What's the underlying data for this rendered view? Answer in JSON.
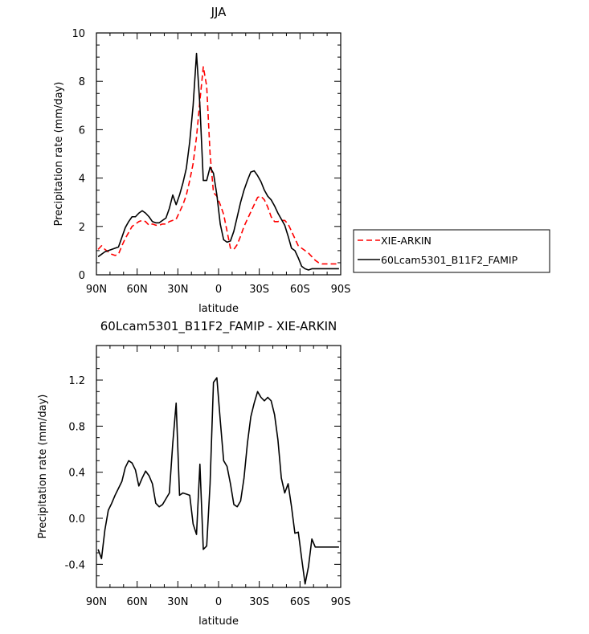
{
  "chart_data": [
    {
      "type": "line",
      "title": "JJA",
      "xlabel": "latitude",
      "ylabel": "Precipitation rate (mm/day)",
      "xlim": [
        90,
        -90
      ],
      "ylim": [
        0,
        10
      ],
      "x_ticks": [
        90,
        60,
        30,
        0,
        -30,
        -60,
        -90
      ],
      "x_tick_labels": [
        "90N",
        "60N",
        "30N",
        "0",
        "30S",
        "60S",
        "90S"
      ],
      "y_ticks": [
        0,
        2,
        4,
        6,
        8,
        10
      ],
      "y_tick_labels": [
        "0",
        "2",
        "4",
        "6",
        "8",
        "10"
      ],
      "legend_position": "right, beside plot",
      "series": [
        {
          "name": "XIE-ARKIN",
          "color": "#ff0000",
          "style": "dashed",
          "x": [
            88.75,
            86.25,
            83.75,
            81.25,
            78.75,
            76.25,
            73.75,
            71.25,
            68.75,
            66.25,
            63.75,
            61.25,
            58.75,
            56.25,
            53.75,
            51.25,
            48.75,
            46.25,
            43.75,
            41.25,
            38.75,
            36.25,
            33.75,
            31.25,
            28.75,
            26.25,
            23.75,
            21.25,
            18.75,
            16.25,
            13.75,
            11.25,
            8.75,
            6.25,
            3.75,
            1.25,
            -1.25,
            -3.75,
            -6.25,
            -8.75,
            -11.25,
            -13.75,
            -16.25,
            -18.75,
            -21.25,
            -23.75,
            -26.25,
            -28.75,
            -31.25,
            -33.75,
            -36.25,
            -38.75,
            -41.25,
            -43.75,
            -46.25,
            -48.75,
            -51.25,
            -53.75,
            -56.25,
            -58.75,
            -61.25,
            -63.75,
            -66.25,
            -68.75,
            -71.25,
            -73.75,
            -76.25,
            -78.75,
            -81.25,
            -83.75,
            -86.25,
            -88.75
          ],
          "y": [
            1.05,
            1.2,
            1.05,
            0.95,
            0.85,
            0.8,
            0.85,
            1.2,
            1.5,
            1.75,
            2.0,
            2.1,
            2.2,
            2.25,
            2.2,
            2.05,
            2.1,
            2.05,
            2.05,
            2.1,
            2.1,
            2.2,
            2.25,
            2.3,
            2.6,
            2.9,
            3.3,
            3.9,
            4.6,
            5.7,
            7.2,
            8.6,
            7.8,
            5.0,
            3.4,
            3.25,
            2.9,
            2.5,
            1.8,
            1.1,
            1.05,
            1.25,
            1.6,
            2.0,
            2.3,
            2.6,
            2.9,
            3.2,
            3.25,
            3.1,
            2.8,
            2.4,
            2.2,
            2.2,
            2.25,
            2.25,
            2.1,
            1.8,
            1.5,
            1.2,
            1.1,
            1.0,
            0.9,
            0.75,
            0.6,
            0.5,
            0.45,
            0.45,
            0.45,
            0.45,
            0.45,
            0.45
          ]
        },
        {
          "name": "60Lcam5301_B11F2_FAMIP",
          "color": "#000000",
          "style": "solid",
          "x": [
            88.75,
            86.25,
            83.75,
            81.25,
            78.75,
            76.25,
            73.75,
            71.25,
            68.75,
            66.25,
            63.75,
            61.25,
            58.75,
            56.25,
            53.75,
            51.25,
            48.75,
            46.25,
            43.75,
            41.25,
            38.75,
            36.25,
            33.75,
            31.25,
            28.75,
            26.25,
            23.75,
            21.25,
            18.75,
            16.25,
            13.75,
            11.25,
            8.75,
            6.25,
            3.75,
            1.25,
            -1.25,
            -3.75,
            -6.25,
            -8.75,
            -11.25,
            -13.75,
            -16.25,
            -18.75,
            -21.25,
            -23.75,
            -26.25,
            -28.75,
            -31.25,
            -33.75,
            -36.25,
            -38.75,
            -41.25,
            -43.75,
            -46.25,
            -48.75,
            -51.25,
            -53.75,
            -56.25,
            -58.75,
            -61.25,
            -63.75,
            -66.25,
            -68.75,
            -71.25,
            -73.75,
            -76.25,
            -78.75,
            -81.25,
            -83.75,
            -86.25,
            -88.75
          ],
          "y": [
            0.75,
            0.85,
            0.95,
            1.0,
            1.05,
            1.1,
            1.15,
            1.55,
            1.95,
            2.2,
            2.4,
            2.4,
            2.55,
            2.65,
            2.55,
            2.4,
            2.2,
            2.15,
            2.15,
            2.25,
            2.35,
            2.75,
            3.3,
            2.9,
            3.3,
            3.8,
            4.4,
            5.5,
            7.0,
            9.15,
            7.0,
            3.9,
            3.9,
            4.45,
            4.2,
            3.3,
            2.1,
            1.45,
            1.35,
            1.4,
            1.8,
            2.4,
            3.0,
            3.5,
            3.9,
            4.25,
            4.3,
            4.1,
            3.85,
            3.5,
            3.25,
            3.1,
            2.85,
            2.55,
            2.3,
            2.05,
            1.6,
            1.1,
            1.0,
            0.7,
            0.35,
            0.25,
            0.2,
            0.25,
            0.25,
            0.25,
            0.25,
            0.25,
            0.25,
            0.25,
            0.25,
            0.25
          ]
        }
      ]
    },
    {
      "type": "line",
      "title": "60Lcam5301_B11F2_FAMIP - XIE-ARKIN",
      "xlabel": "latitude",
      "ylabel": "Precipitation rate (mm/day)",
      "xlim": [
        90,
        -90
      ],
      "ylim": [
        -0.6,
        1.5
      ],
      "x_ticks": [
        90,
        60,
        30,
        0,
        -30,
        -60,
        -90
      ],
      "x_tick_labels": [
        "90N",
        "60N",
        "30N",
        "0",
        "30S",
        "60S",
        "90S"
      ],
      "y_ticks": [
        -0.4,
        0.0,
        0.4,
        0.8,
        1.2
      ],
      "y_tick_labels": [
        "-0.4",
        "0.0",
        "0.4",
        "0.8",
        "1.2"
      ],
      "series": [
        {
          "color": "#000000",
          "style": "solid",
          "x": [
            88.75,
            86.25,
            83.75,
            81.25,
            78.75,
            76.25,
            73.75,
            71.25,
            68.75,
            66.25,
            63.75,
            61.25,
            58.75,
            56.25,
            53.75,
            51.25,
            48.75,
            46.25,
            43.75,
            41.25,
            38.75,
            36.25,
            33.75,
            31.25,
            28.75,
            26.25,
            23.75,
            21.25,
            18.75,
            16.25,
            13.75,
            11.25,
            8.75,
            6.25,
            3.75,
            1.25,
            -1.25,
            -3.75,
            -6.25,
            -8.75,
            -11.25,
            -13.75,
            -16.25,
            -18.75,
            -21.25,
            -23.75,
            -26.25,
            -28.75,
            -31.25,
            -33.75,
            -36.25,
            -38.75,
            -41.25,
            -43.75,
            -46.25,
            -48.75,
            -51.25,
            -53.75,
            -56.25,
            -58.75,
            -61.25,
            -63.75,
            -66.25,
            -68.75,
            -71.25,
            -73.75,
            -76.25,
            -78.75,
            -81.25,
            -83.75,
            -86.25,
            -88.75
          ],
          "y": [
            -0.27,
            -0.35,
            -0.1,
            0.07,
            0.13,
            0.2,
            0.26,
            0.32,
            0.44,
            0.5,
            0.48,
            0.42,
            0.28,
            0.35,
            0.41,
            0.37,
            0.3,
            0.13,
            0.1,
            0.12,
            0.17,
            0.22,
            0.65,
            1.0,
            0.2,
            0.22,
            0.21,
            0.2,
            -0.05,
            -0.14,
            0.47,
            -0.27,
            -0.24,
            0.3,
            1.18,
            1.22,
            0.85,
            0.5,
            0.45,
            0.3,
            0.12,
            0.1,
            0.15,
            0.35,
            0.65,
            0.88,
            1.0,
            1.1,
            1.05,
            1.02,
            1.05,
            1.02,
            0.9,
            0.68,
            0.35,
            0.22,
            0.3,
            0.1,
            -0.13,
            -0.12,
            -0.35,
            -0.57,
            -0.42,
            -0.18,
            -0.25,
            -0.25,
            -0.25,
            -0.25,
            -0.25,
            -0.25,
            -0.25,
            -0.25
          ]
        }
      ]
    }
  ]
}
